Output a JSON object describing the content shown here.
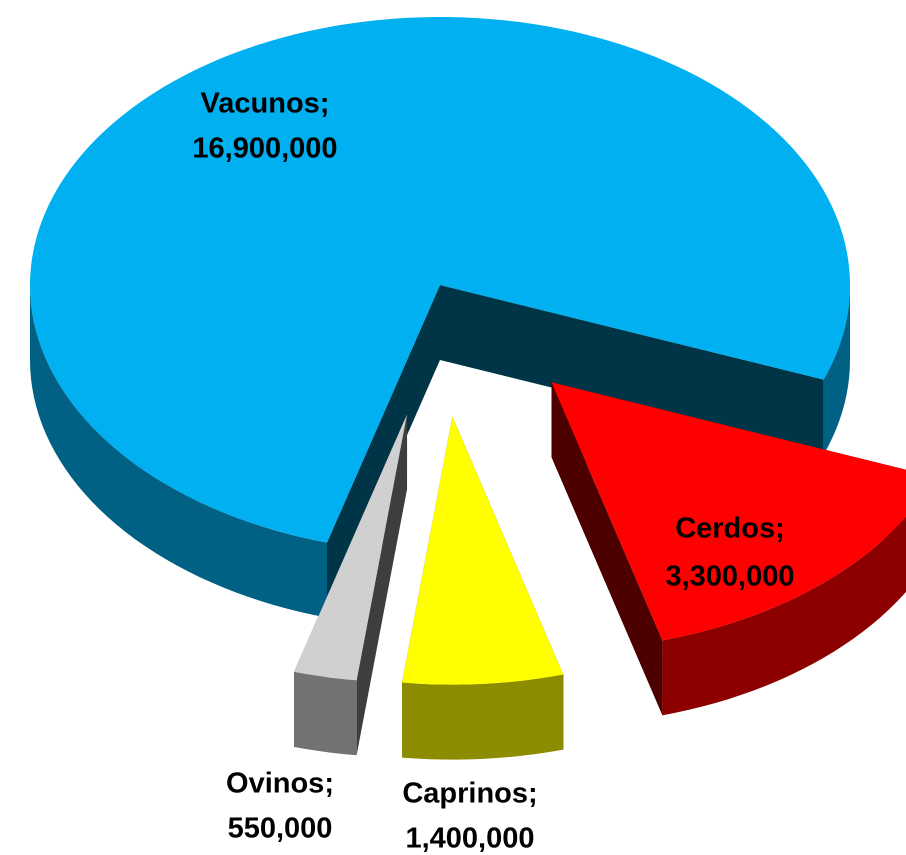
{
  "chart_data": {
    "type": "pie",
    "categories": [
      "Vacunos;",
      "Cerdos;",
      "Caprinos;",
      "Ovinos;"
    ],
    "values": [
      16900000,
      3300000,
      1400000,
      550000
    ],
    "value_labels": [
      "16,900,000",
      "3,300,000",
      "1,400,000",
      "550,000"
    ],
    "colors": [
      "#00b0f0",
      "#ff0000",
      "#ffff00",
      "#d0d0d0"
    ]
  }
}
